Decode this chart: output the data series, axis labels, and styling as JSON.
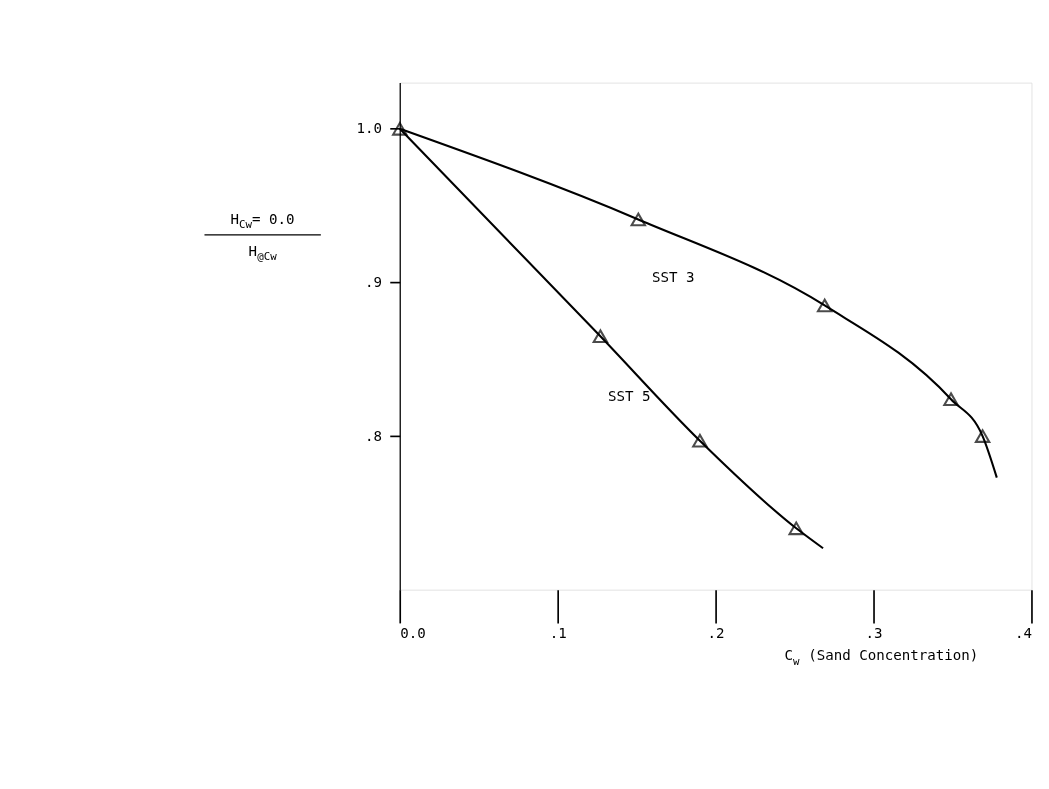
{
  "chart_data": {
    "type": "line",
    "xlabel": "C$_{w}$ (Sand Concentration)",
    "ylabel": "H$_{Cw}$= 0.0\nH$_{@Cw}$",
    "series": [
      {
        "color": "#000000",
        "marker": "none",
        "x": [
          0.0,
          0.151,
          0.269,
          0.349,
          0.369,
          0.378
        ],
        "values": [
          1.0,
          0.941,
          0.885,
          0.824,
          0.8,
          0.773
        ]
      },
      {
        "color": "#000000",
        "marker": "none",
        "x": [
          0.0,
          0.127,
          0.19,
          0.251,
          0.268
        ],
        "values": [
          1.0,
          0.865,
          0.797,
          0.74,
          0.727
        ]
      },
      {
        "type": "scatter",
        "color": "#000000",
        "marker": "triangle",
        "x": [
          0.0,
          0.151,
          0.269,
          0.349,
          0.369
        ],
        "values": [
          1.0,
          0.941,
          0.885,
          0.824,
          0.8
        ]
      },
      {
        "type": "scatter",
        "color": "#000000",
        "marker": "triangle",
        "x": [
          0.127,
          0.19,
          0.251
        ],
        "values": [
          0.865,
          0.797,
          0.74
        ]
      }
    ],
    "xlim": [
      0.0,
      0.4
    ],
    "ylim": [
      0.7,
      1.03
    ],
    "xticks": [
      {
        "value": 0.0,
        "label": "0.0"
      },
      {
        "value": 0.1,
        "label": ".1"
      },
      {
        "value": 0.2,
        "label": ".2"
      },
      {
        "value": 0.3,
        "label": ".3"
      },
      {
        "value": 0.4,
        "label": ".4"
      }
    ],
    "yticks": [
      {
        "value": 0.8,
        "label": ".8"
      },
      {
        "value": 0.9,
        "label": ".9"
      },
      {
        "value": 1.0,
        "label": "1.0"
      }
    ],
    "annotations": [
      "SST 3",
      "SST 5"
    ],
    "grid": false,
    "line_style": "solid"
  }
}
